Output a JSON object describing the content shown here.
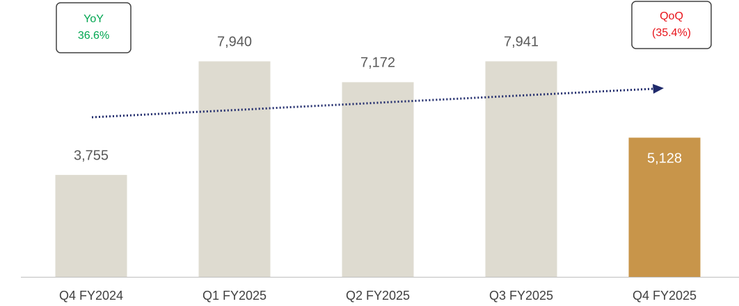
{
  "chart_data": {
    "type": "bar",
    "categories": [
      "Q4 FY2024",
      "Q1 FY2025",
      "Q2 FY2025",
      "Q3 FY2025",
      "Q4 FY2025"
    ],
    "values": [
      3755,
      7940,
      7172,
      7941,
      5128
    ],
    "value_labels": [
      "3,755",
      "7,940",
      "7,172",
      "7,941",
      "5,128"
    ],
    "colors": [
      "#dedbd0",
      "#dedbd0",
      "#dedbd0",
      "#dedbd0",
      "#c8954a"
    ],
    "ylim": [
      0,
      10200
    ],
    "annotations": [
      {
        "lines": [
          "YoY",
          "36.6%"
        ],
        "color": "#00a650"
      },
      {
        "lines": [
          "QoQ",
          "(35.4%)"
        ],
        "color": "#e8131a"
      }
    ]
  }
}
